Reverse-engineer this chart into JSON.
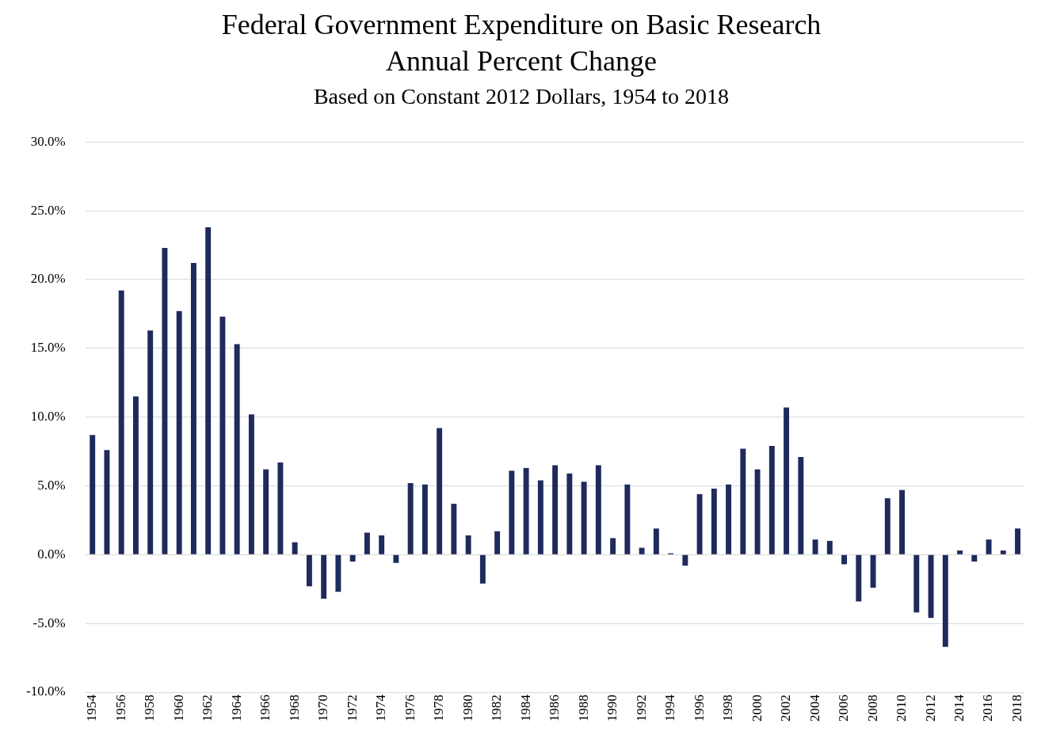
{
  "chart_data": {
    "type": "bar",
    "title": "Federal Government Expenditure on Basic Research\nAnnual Percent Change",
    "subtitle": "Based on Constant 2012 Dollars, 1954 to 2018",
    "categories": [
      "1954",
      null,
      "1956",
      null,
      "1958",
      null,
      "1960",
      null,
      "1962",
      null,
      "1964",
      null,
      "1966",
      null,
      "1968",
      null,
      "1970",
      null,
      "1972",
      null,
      "1974",
      null,
      "1976",
      null,
      "1978",
      null,
      "1980",
      null,
      "1982",
      null,
      "1984",
      null,
      "1986",
      null,
      "1988",
      null,
      "1990",
      null,
      "1992",
      null,
      "1994",
      null,
      "1996",
      null,
      "1998",
      null,
      "2000",
      null,
      "2002",
      null,
      "2004",
      null,
      "2006",
      null,
      "2008",
      null,
      "2010",
      null,
      "2012",
      null,
      "2014",
      null,
      "2016",
      null,
      "2018"
    ],
    "values": [
      8.7,
      7.6,
      19.2,
      11.5,
      16.3,
      22.3,
      17.7,
      21.2,
      23.8,
      17.3,
      15.3,
      10.2,
      6.2,
      6.7,
      0.9,
      -2.3,
      -3.2,
      -2.7,
      -0.5,
      1.6,
      1.4,
      -0.6,
      5.2,
      5.1,
      9.2,
      3.7,
      1.4,
      -2.1,
      1.7,
      6.1,
      6.3,
      5.4,
      6.5,
      5.9,
      5.3,
      6.5,
      1.2,
      5.1,
      0.5,
      1.9,
      0.1,
      -0.8,
      4.4,
      4.8,
      5.1,
      7.7,
      6.2,
      7.9,
      10.7,
      7.1,
      1.1,
      1.0,
      -0.7,
      -3.4,
      -2.4,
      4.1,
      4.7,
      -4.2,
      -4.6,
      -6.7,
      0.3,
      -0.5,
      1.1,
      0.3,
      1.9
    ],
    "color": "#1f2a5c",
    "ylim": [
      -10,
      30
    ],
    "yticks": [
      {
        "value": -10,
        "label": "-10.0%"
      },
      {
        "value": -5,
        "label": "-5.0%"
      },
      {
        "value": 0,
        "label": "0.0%"
      },
      {
        "value": 5,
        "label": "5.0%"
      },
      {
        "value": 10,
        "label": "10.0%"
      },
      {
        "value": 15,
        "label": "15.0%"
      },
      {
        "value": 20,
        "label": "20.0%"
      },
      {
        "value": 25,
        "label": "25.0%"
      },
      {
        "value": 30,
        "label": "30.0%"
      }
    ],
    "grid": "y",
    "legend": false
  }
}
